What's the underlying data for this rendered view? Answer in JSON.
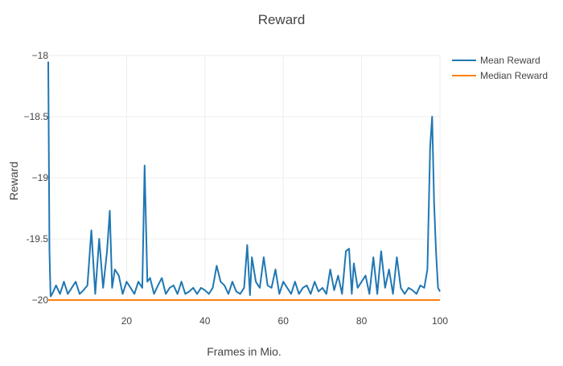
{
  "chart_data": {
    "type": "line",
    "title": "Reward",
    "xlabel": "Frames in Mio.",
    "ylabel": "Reward",
    "xlim": [
      0,
      100
    ],
    "ylim": [
      -20,
      -18
    ],
    "x_ticks": [
      20,
      40,
      60,
      80,
      100
    ],
    "x_tick_labels": [
      "20",
      "40",
      "60",
      "80",
      "100"
    ],
    "y_ticks": [
      -18,
      -18.5,
      -19,
      -19.5,
      -20
    ],
    "y_tick_labels": [
      "−18",
      "−18.5",
      "−19",
      "-19.5",
      "−20"
    ],
    "grid": true,
    "legend_position": "top-right",
    "series": [
      {
        "name": "Mean Reward",
        "color": "#1f77b4",
        "x": [
          0,
          0.3,
          0.6,
          1,
          2,
          3,
          4,
          5,
          6,
          7,
          8,
          9,
          10,
          11,
          12,
          13,
          14,
          15,
          15.7,
          16.3,
          17,
          18,
          19,
          20,
          21,
          22,
          23,
          24,
          24.6,
          25.3,
          26,
          27,
          28,
          29,
          30,
          31,
          32,
          33,
          34,
          35,
          36,
          37,
          38,
          39,
          40,
          41,
          42,
          43,
          44,
          45,
          46,
          47,
          48,
          49,
          50,
          50.8,
          51.5,
          52,
          53,
          54,
          55,
          56,
          57,
          58,
          59,
          60,
          61,
          62,
          63,
          64,
          65,
          66,
          67,
          68,
          69,
          70,
          71,
          72,
          73,
          74,
          75,
          76,
          76.8,
          77.5,
          78,
          79,
          80,
          81,
          82,
          83,
          84,
          85,
          86,
          87,
          88,
          89,
          90,
          91,
          92,
          93,
          94,
          95,
          96,
          96.8,
          97.5,
          98,
          98.5,
          99,
          99.5,
          100
        ],
        "values": [
          -18.05,
          -19.6,
          -19.97,
          -19.95,
          -19.88,
          -19.95,
          -19.85,
          -19.95,
          -19.9,
          -19.85,
          -19.95,
          -19.92,
          -19.88,
          -19.43,
          -19.95,
          -19.5,
          -19.9,
          -19.6,
          -19.27,
          -19.9,
          -19.75,
          -19.8,
          -19.95,
          -19.85,
          -19.9,
          -19.95,
          -19.85,
          -19.9,
          -18.9,
          -19.85,
          -19.82,
          -19.95,
          -19.88,
          -19.82,
          -19.95,
          -19.9,
          -19.88,
          -19.95,
          -19.85,
          -19.95,
          -19.93,
          -19.9,
          -19.95,
          -19.9,
          -19.92,
          -19.95,
          -19.9,
          -19.72,
          -19.85,
          -19.88,
          -19.95,
          -19.85,
          -19.93,
          -19.95,
          -19.9,
          -19.55,
          -19.96,
          -19.65,
          -19.85,
          -19.9,
          -19.65,
          -19.88,
          -19.9,
          -19.75,
          -19.95,
          -19.85,
          -19.9,
          -19.95,
          -19.85,
          -19.95,
          -19.9,
          -19.88,
          -19.95,
          -19.85,
          -19.93,
          -19.9,
          -19.95,
          -19.75,
          -19.92,
          -19.8,
          -19.95,
          -19.6,
          -19.58,
          -19.95,
          -19.7,
          -19.9,
          -19.85,
          -19.8,
          -19.95,
          -19.65,
          -19.95,
          -19.6,
          -19.9,
          -19.75,
          -19.95,
          -19.65,
          -19.9,
          -19.95,
          -19.9,
          -19.92,
          -19.95,
          -19.88,
          -19.9,
          -19.75,
          -18.75,
          -18.5,
          -19.2,
          -19.6,
          -19.9,
          -19.93
        ]
      },
      {
        "name": "Median Reward",
        "color": "#ff7f0e",
        "x": [
          0,
          100
        ],
        "values": [
          -20,
          -20
        ]
      }
    ]
  }
}
